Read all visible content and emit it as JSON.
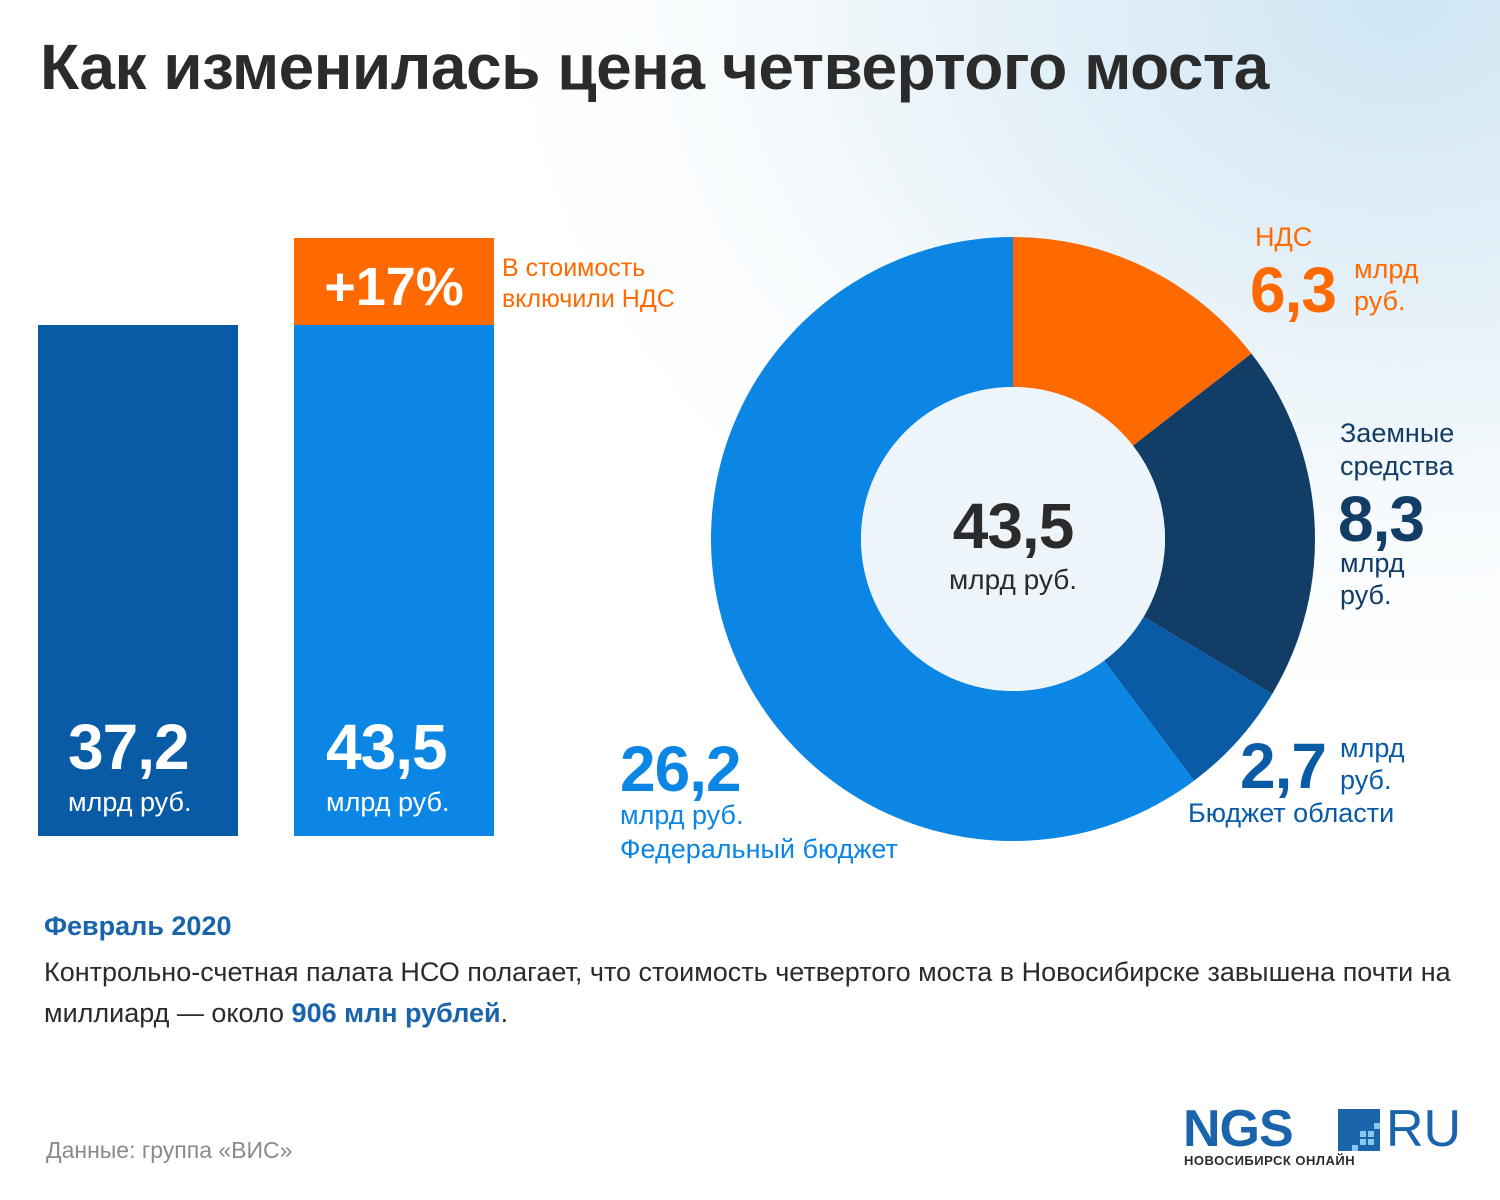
{
  "title": "Как изменилась цена четвертого моста",
  "colors": {
    "bar_dark": "#0a5ba6",
    "bar_light": "#0c86e4",
    "vat": "#ff6a00",
    "loans": "#123d66",
    "regional": "#0a5ba6",
    "federal": "#0c86e4",
    "text_dark": "#2b2b2b",
    "accent_blue": "#1a64ab"
  },
  "chart_data": [
    {
      "type": "bar",
      "categories": [
        "",
        ""
      ],
      "values": [
        37.2,
        43.5
      ],
      "value_labels": [
        "37,2",
        "43,5"
      ],
      "unit_label": "млрд руб.",
      "increase": {
        "label": "+17%",
        "note_line1": "В стоимость",
        "note_line2": "включили НДС"
      }
    },
    {
      "type": "pie",
      "donut": true,
      "center_value": "43,5",
      "center_unit": "млрд руб.",
      "slices": [
        {
          "name": "НДС",
          "value": 6.3,
          "value_label": "6,3",
          "unit_line1": "млрд",
          "unit_line2": "руб."
        },
        {
          "name_line1": "Заемные",
          "name_line2": "средства",
          "value": 8.3,
          "value_label": "8,3",
          "unit_line1": "млрд",
          "unit_line2": "руб."
        },
        {
          "name": "Бюджет области",
          "value": 2.7,
          "value_label": "2,7",
          "unit_line1": "млрд",
          "unit_line2": "руб."
        },
        {
          "name": "Федеральный бюджет",
          "value": 26.2,
          "value_label": "26,2",
          "unit": "млрд руб."
        }
      ]
    }
  ],
  "date": "Февраль 2020",
  "description": {
    "text": "Контрольно-счетная палата НСО полагает, что стоимость четвертого моста в Новосибирске завышена почти на миллиард — около ",
    "highlight": "906 млн рублей",
    "end": "."
  },
  "source": "Данные: группа «ВИС»",
  "logo": {
    "main": "NGS",
    "ru": "RU",
    "sub": "НОВОСИБИРСК ОНЛАЙН"
  }
}
